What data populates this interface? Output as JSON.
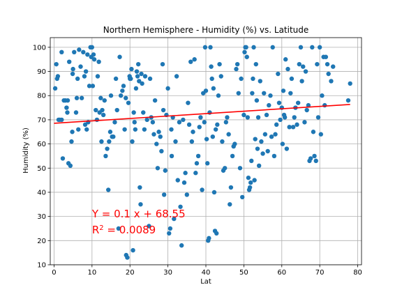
{
  "chart_data": {
    "type": "scatter",
    "title": "Northern Hemisphere - Humidity (%) vs. Latitude",
    "xlabel": "Lat",
    "ylabel": "Humidity (%)",
    "xlim": [
      -1,
      81
    ],
    "ylim": [
      10,
      104
    ],
    "xticks": [
      0,
      10,
      20,
      30,
      40,
      50,
      60,
      70,
      80
    ],
    "yticks": [
      10,
      20,
      30,
      40,
      50,
      60,
      70,
      80,
      90,
      100
    ],
    "grid": true,
    "colors": {
      "points": "#1f77b4",
      "regression": "#ff0000",
      "annotation": "#ff0000",
      "grid": "#b0b0b0"
    },
    "regression": {
      "slope": 0.1,
      "intercept": 68.55,
      "x_range": [
        0,
        78
      ]
    },
    "annotation": {
      "equation": "Y = 0.1 x + 68.55",
      "r2_prefix": "R",
      "r2_exp": "2",
      "r2_value": " = 0.0089",
      "at": [
        10,
        31
      ]
    },
    "series": [
      {
        "points": [
          [
            0.3,
            83
          ],
          [
            0.6,
            93
          ],
          [
            0.8,
            87
          ],
          [
            1,
            88
          ],
          [
            1.2,
            70
          ],
          [
            1.5,
            70
          ],
          [
            2,
            70
          ],
          [
            2,
            98
          ],
          [
            2.3,
            54
          ],
          [
            2.6,
            78
          ],
          [
            3,
            78
          ],
          [
            3.3,
            75
          ],
          [
            3.5,
            73
          ],
          [
            3.6,
            78
          ],
          [
            3.8,
            52
          ],
          [
            4,
            94
          ],
          [
            4.3,
            51
          ],
          [
            4.6,
            61
          ],
          [
            4.8,
            65
          ],
          [
            4.9,
            89
          ],
          [
            5,
            91
          ],
          [
            5.3,
            98
          ],
          [
            5.8,
            73
          ],
          [
            6,
            79
          ],
          [
            6.2,
            87
          ],
          [
            6.4,
            66
          ],
          [
            6.6,
            99
          ],
          [
            7,
            92
          ],
          [
            7.3,
            79
          ],
          [
            7.7,
            98
          ],
          [
            8,
            88
          ],
          [
            8.2,
            68
          ],
          [
            8.4,
            90
          ],
          [
            8.6,
            66
          ],
          [
            8.8,
            97
          ],
          [
            9,
            69
          ],
          [
            9.3,
            84
          ],
          [
            9.6,
            100
          ],
          [
            9.8,
            96
          ],
          [
            10,
            100
          ],
          [
            10.2,
            84
          ],
          [
            10.4,
            97
          ],
          [
            10.6,
            95
          ],
          [
            11,
            74
          ],
          [
            11.3,
            70
          ],
          [
            11.5,
            88
          ],
          [
            11.8,
            94
          ],
          [
            12,
            73
          ],
          [
            12.3,
            79
          ],
          [
            12.5,
            61
          ],
          [
            12.7,
            74
          ],
          [
            13,
            72
          ],
          [
            13.3,
            78
          ],
          [
            13.6,
            55
          ],
          [
            14,
            58
          ],
          [
            14.3,
            41
          ],
          [
            14.5,
            61
          ],
          [
            14.8,
            65
          ],
          [
            15,
            80
          ],
          [
            15.3,
            63
          ],
          [
            15.6,
            63
          ],
          [
            16,
            69
          ],
          [
            16.3,
            87
          ],
          [
            16.6,
            74
          ],
          [
            17,
            25
          ],
          [
            17.3,
            96
          ],
          [
            17.6,
            80
          ],
          [
            18,
            82
          ],
          [
            18.3,
            84
          ],
          [
            18.6,
            66
          ],
          [
            18.9,
            79
          ],
          [
            19,
            14
          ],
          [
            19.3,
            13
          ],
          [
            19.6,
            77
          ],
          [
            19.9,
            88
          ],
          [
            20,
            87
          ],
          [
            20.2,
            87
          ],
          [
            20.4,
            91
          ],
          [
            20.6,
            61
          ],
          [
            20.8,
            16
          ],
          [
            21,
            73
          ],
          [
            21.2,
            69
          ],
          [
            21.4,
            66
          ],
          [
            21.6,
            83
          ],
          [
            21.8,
            90
          ],
          [
            22,
            88
          ],
          [
            22.2,
            93
          ],
          [
            22.4,
            86
          ],
          [
            22.6,
            42
          ],
          [
            22.8,
            35
          ],
          [
            23,
            89
          ],
          [
            23.2,
            85
          ],
          [
            23.5,
            73
          ],
          [
            23.8,
            66
          ],
          [
            24,
            88
          ],
          [
            24.5,
            70
          ],
          [
            25,
            26
          ],
          [
            25.3,
            87
          ],
          [
            25.6,
            71
          ],
          [
            26,
            69
          ],
          [
            26.3,
            64
          ],
          [
            26.6,
            78
          ],
          [
            27,
            60
          ],
          [
            27.3,
            50
          ],
          [
            27.6,
            65
          ],
          [
            28,
            63
          ],
          [
            28.3,
            57
          ],
          [
            28.6,
            93
          ],
          [
            28.8,
            74
          ],
          [
            29,
            39
          ],
          [
            29.3,
            49
          ],
          [
            29.6,
            72
          ],
          [
            30,
            83
          ],
          [
            30.3,
            23
          ],
          [
            30.6,
            25
          ],
          [
            30.9,
            66
          ],
          [
            31,
            55
          ],
          [
            31.3,
            71
          ],
          [
            31.6,
            29
          ],
          [
            32,
            61
          ],
          [
            32.3,
            88
          ],
          [
            32.6,
            45
          ],
          [
            33,
            69
          ],
          [
            33.3,
            34
          ],
          [
            33.6,
            18
          ],
          [
            34,
            70
          ],
          [
            34.3,
            44
          ],
          [
            34.6,
            48
          ],
          [
            35,
            39
          ],
          [
            35.3,
            77
          ],
          [
            35.6,
            68
          ],
          [
            36,
            94
          ],
          [
            36.3,
            61
          ],
          [
            36.6,
            65
          ],
          [
            37,
            95
          ],
          [
            37.3,
            48
          ],
          [
            37.6,
            52
          ],
          [
            38,
            55
          ],
          [
            38.3,
            67
          ],
          [
            38.6,
            71
          ],
          [
            39,
            41
          ],
          [
            39.3,
            81
          ],
          [
            39.6,
            69
          ],
          [
            39.8,
            100
          ],
          [
            40,
            82
          ],
          [
            40.2,
            62
          ],
          [
            40.4,
            52
          ],
          [
            40.6,
            20
          ],
          [
            40.8,
            21
          ],
          [
            41,
            73
          ],
          [
            41.2,
            100
          ],
          [
            41.4,
            92
          ],
          [
            41.6,
            87
          ],
          [
            41.8,
            63
          ],
          [
            42,
            83
          ],
          [
            42.2,
            40
          ],
          [
            42.4,
            24
          ],
          [
            42.6,
            66
          ],
          [
            42.8,
            23
          ],
          [
            43,
            68
          ],
          [
            43.3,
            80
          ],
          [
            43.6,
            93
          ],
          [
            44,
            88
          ],
          [
            44.3,
            61
          ],
          [
            44.6,
            49
          ],
          [
            45,
            50
          ],
          [
            45.3,
            69
          ],
          [
            45.6,
            71
          ],
          [
            46,
            64
          ],
          [
            46.3,
            35
          ],
          [
            46.6,
            42
          ],
          [
            47,
            55
          ],
          [
            47.3,
            59
          ],
          [
            47.6,
            60
          ],
          [
            48,
            91
          ],
          [
            48.3,
            93
          ],
          [
            48.6,
            81
          ],
          [
            49,
            50
          ],
          [
            49.3,
            87
          ],
          [
            49.6,
            38
          ],
          [
            50,
            72
          ],
          [
            50.2,
            98
          ],
          [
            50.4,
            100
          ],
          [
            50.6,
            100
          ],
          [
            50.8,
            96
          ],
          [
            51,
            71
          ],
          [
            51.2,
            46
          ],
          [
            51.4,
            41
          ],
          [
            51.6,
            42
          ],
          [
            51.8,
            44
          ],
          [
            52,
            53
          ],
          [
            52.2,
            81
          ],
          [
            52.4,
            87
          ],
          [
            52.6,
            100
          ],
          [
            52.8,
            45
          ],
          [
            53,
            62
          ],
          [
            53.2,
            93
          ],
          [
            53.4,
            78
          ],
          [
            53.6,
            58
          ],
          [
            53.8,
            71
          ],
          [
            54,
            51
          ],
          [
            54.3,
            86
          ],
          [
            54.6,
            61
          ],
          [
            55,
            56
          ],
          [
            55.3,
            81
          ],
          [
            55.6,
            64
          ],
          [
            56,
            72
          ],
          [
            56.3,
            57
          ],
          [
            56.6,
            76
          ],
          [
            57,
            80
          ],
          [
            57.3,
            63
          ],
          [
            57.6,
            100
          ],
          [
            58,
            55
          ],
          [
            58.3,
            64
          ],
          [
            58.6,
            68
          ],
          [
            59,
            89
          ],
          [
            59.3,
            77
          ],
          [
            59.6,
            70
          ],
          [
            60,
            75
          ],
          [
            60.2,
            60
          ],
          [
            60.4,
            82
          ],
          [
            60.6,
            72
          ],
          [
            60.8,
            71
          ],
          [
            61,
            95
          ],
          [
            61.3,
            58
          ],
          [
            61.6,
            91
          ],
          [
            62,
            67
          ],
          [
            62.3,
            81
          ],
          [
            62.6,
            87
          ],
          [
            63,
            67
          ],
          [
            63.3,
            71
          ],
          [
            63.6,
            75
          ],
          [
            64,
            68
          ],
          [
            64.3,
            77
          ],
          [
            64.6,
            93
          ],
          [
            65,
            100
          ],
          [
            65.3,
            86
          ],
          [
            65.6,
            92
          ],
          [
            66,
            69
          ],
          [
            66.3,
            90
          ],
          [
            66.6,
            74
          ],
          [
            67,
            76
          ],
          [
            67.3,
            53
          ],
          [
            67.6,
            54
          ],
          [
            68,
            100
          ],
          [
            68.3,
            65
          ],
          [
            68.6,
            55
          ],
          [
            69,
            53
          ],
          [
            69.3,
            93
          ],
          [
            69.6,
            71
          ],
          [
            70,
            100
          ],
          [
            70.3,
            64
          ],
          [
            70.6,
            80
          ],
          [
            71,
            96
          ],
          [
            71.3,
            76
          ],
          [
            71.6,
            96
          ],
          [
            72,
            93
          ],
          [
            72.3,
            89
          ],
          [
            73,
            86
          ],
          [
            73.5,
            92
          ],
          [
            77.5,
            78
          ],
          [
            78,
            85
          ]
        ]
      }
    ]
  }
}
